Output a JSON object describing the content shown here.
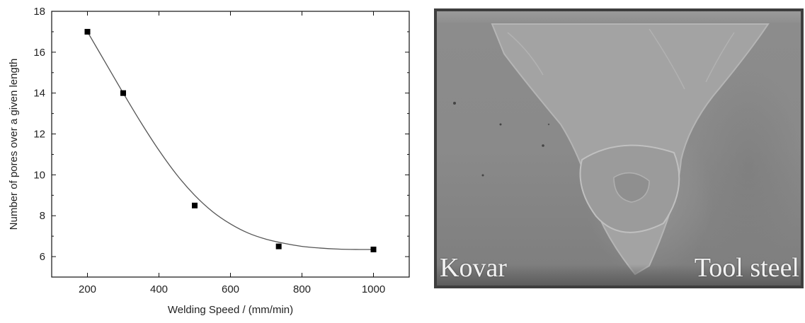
{
  "chart_data": {
    "type": "scatter",
    "title": "",
    "xlabel": "Welding Speed / (mm/min)",
    "ylabel": "Number of pores over a given length",
    "xlim": [
      100,
      1100
    ],
    "ylim": [
      5,
      18
    ],
    "xticks": [
      200,
      400,
      600,
      800,
      1000
    ],
    "yticks": [
      6,
      8,
      10,
      12,
      14,
      16,
      18
    ],
    "x_tick_labels": [
      "200",
      "400",
      "600",
      "800",
      "1000"
    ],
    "y_tick_labels": [
      "6",
      "8",
      "10",
      "12",
      "14",
      "16",
      "18"
    ],
    "grid": false,
    "legend": "none",
    "series": [
      {
        "marker": "square",
        "color": "#000000",
        "x": [
          200,
          300,
          500,
          735,
          1000
        ],
        "y": [
          17.0,
          14.0,
          8.5,
          6.5,
          6.35
        ]
      }
    ],
    "fit_curve": {
      "color": "#555555",
      "x": [
        200,
        250,
        300,
        350,
        400,
        450,
        500,
        550,
        600,
        650,
        700,
        750,
        800,
        850,
        900,
        950,
        1000
      ],
      "y": [
        17.0,
        15.5,
        14.0,
        12.55,
        11.2,
        10.0,
        9.0,
        8.2,
        7.6,
        7.15,
        6.85,
        6.65,
        6.5,
        6.42,
        6.37,
        6.35,
        6.35
      ]
    }
  },
  "micrograph": {
    "labels": {
      "left": "Kovar",
      "right": "Tool steel"
    }
  }
}
